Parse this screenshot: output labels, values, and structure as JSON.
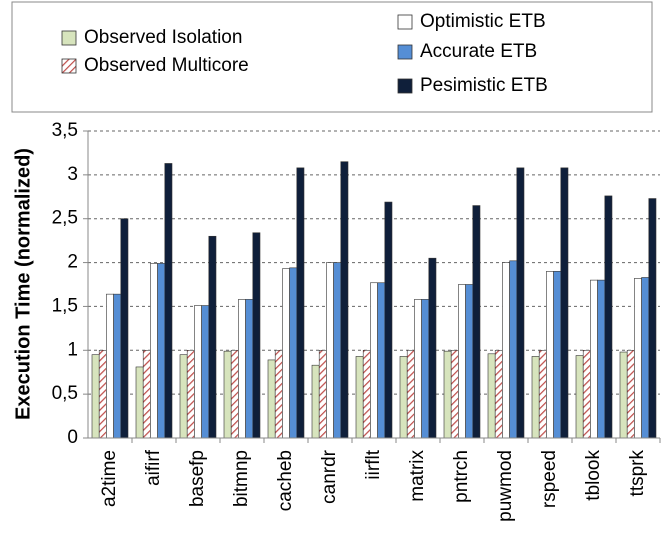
{
  "chart_data": {
    "type": "bar",
    "y_label": "Execution Time (normalized)",
    "categories": [
      "a2time",
      "aifirf",
      "basefp",
      "bitmnp",
      "cacheb",
      "canrdr",
      "iirflt",
      "matrix",
      "pntrch",
      "puwmod",
      "rspeed",
      "tblook",
      "ttsprk"
    ],
    "series": [
      {
        "name": "Observed Isolation",
        "color": "#d7e4bd",
        "values": [
          0.95,
          0.81,
          0.95,
          0.99,
          0.89,
          0.83,
          0.93,
          0.93,
          0.99,
          0.96,
          0.93,
          0.94,
          0.98
        ]
      },
      {
        "name": "Observed Multicore",
        "color": "#c0504d",
        "hatch": true,
        "values": [
          1.0,
          1.0,
          1.0,
          1.0,
          1.0,
          1.0,
          1.0,
          1.0,
          1.0,
          1.0,
          1.0,
          1.0,
          1.0
        ]
      },
      {
        "name": "Optimistic ETB",
        "color": "#ffffff",
        "values": [
          1.64,
          1.99,
          1.51,
          1.58,
          1.93,
          2.0,
          1.77,
          1.58,
          1.75,
          2.0,
          1.9,
          1.8,
          1.82
        ]
      },
      {
        "name": "Accurate ETB",
        "color": "#558ed5",
        "values": [
          1.64,
          1.99,
          1.51,
          1.58,
          1.94,
          2.0,
          1.77,
          1.58,
          1.75,
          2.02,
          1.9,
          1.8,
          1.83
        ]
      },
      {
        "name": "Pesimistic ETB",
        "color": "#0f1f3a",
        "values": [
          2.5,
          3.13,
          2.3,
          2.34,
          3.08,
          3.15,
          2.69,
          2.05,
          2.65,
          3.08,
          3.08,
          2.76,
          2.73
        ]
      }
    ],
    "ylim": [
      0,
      3.5
    ],
    "yticks": [
      0,
      {
        "value": 0.5,
        "label": "0,5"
      },
      1,
      {
        "value": 1.5,
        "label": "1,5"
      },
      2,
      {
        "value": 2.5,
        "label": "2,5"
      },
      3,
      {
        "value": 3.5,
        "label": "3,5"
      }
    ],
    "grid": true
  }
}
